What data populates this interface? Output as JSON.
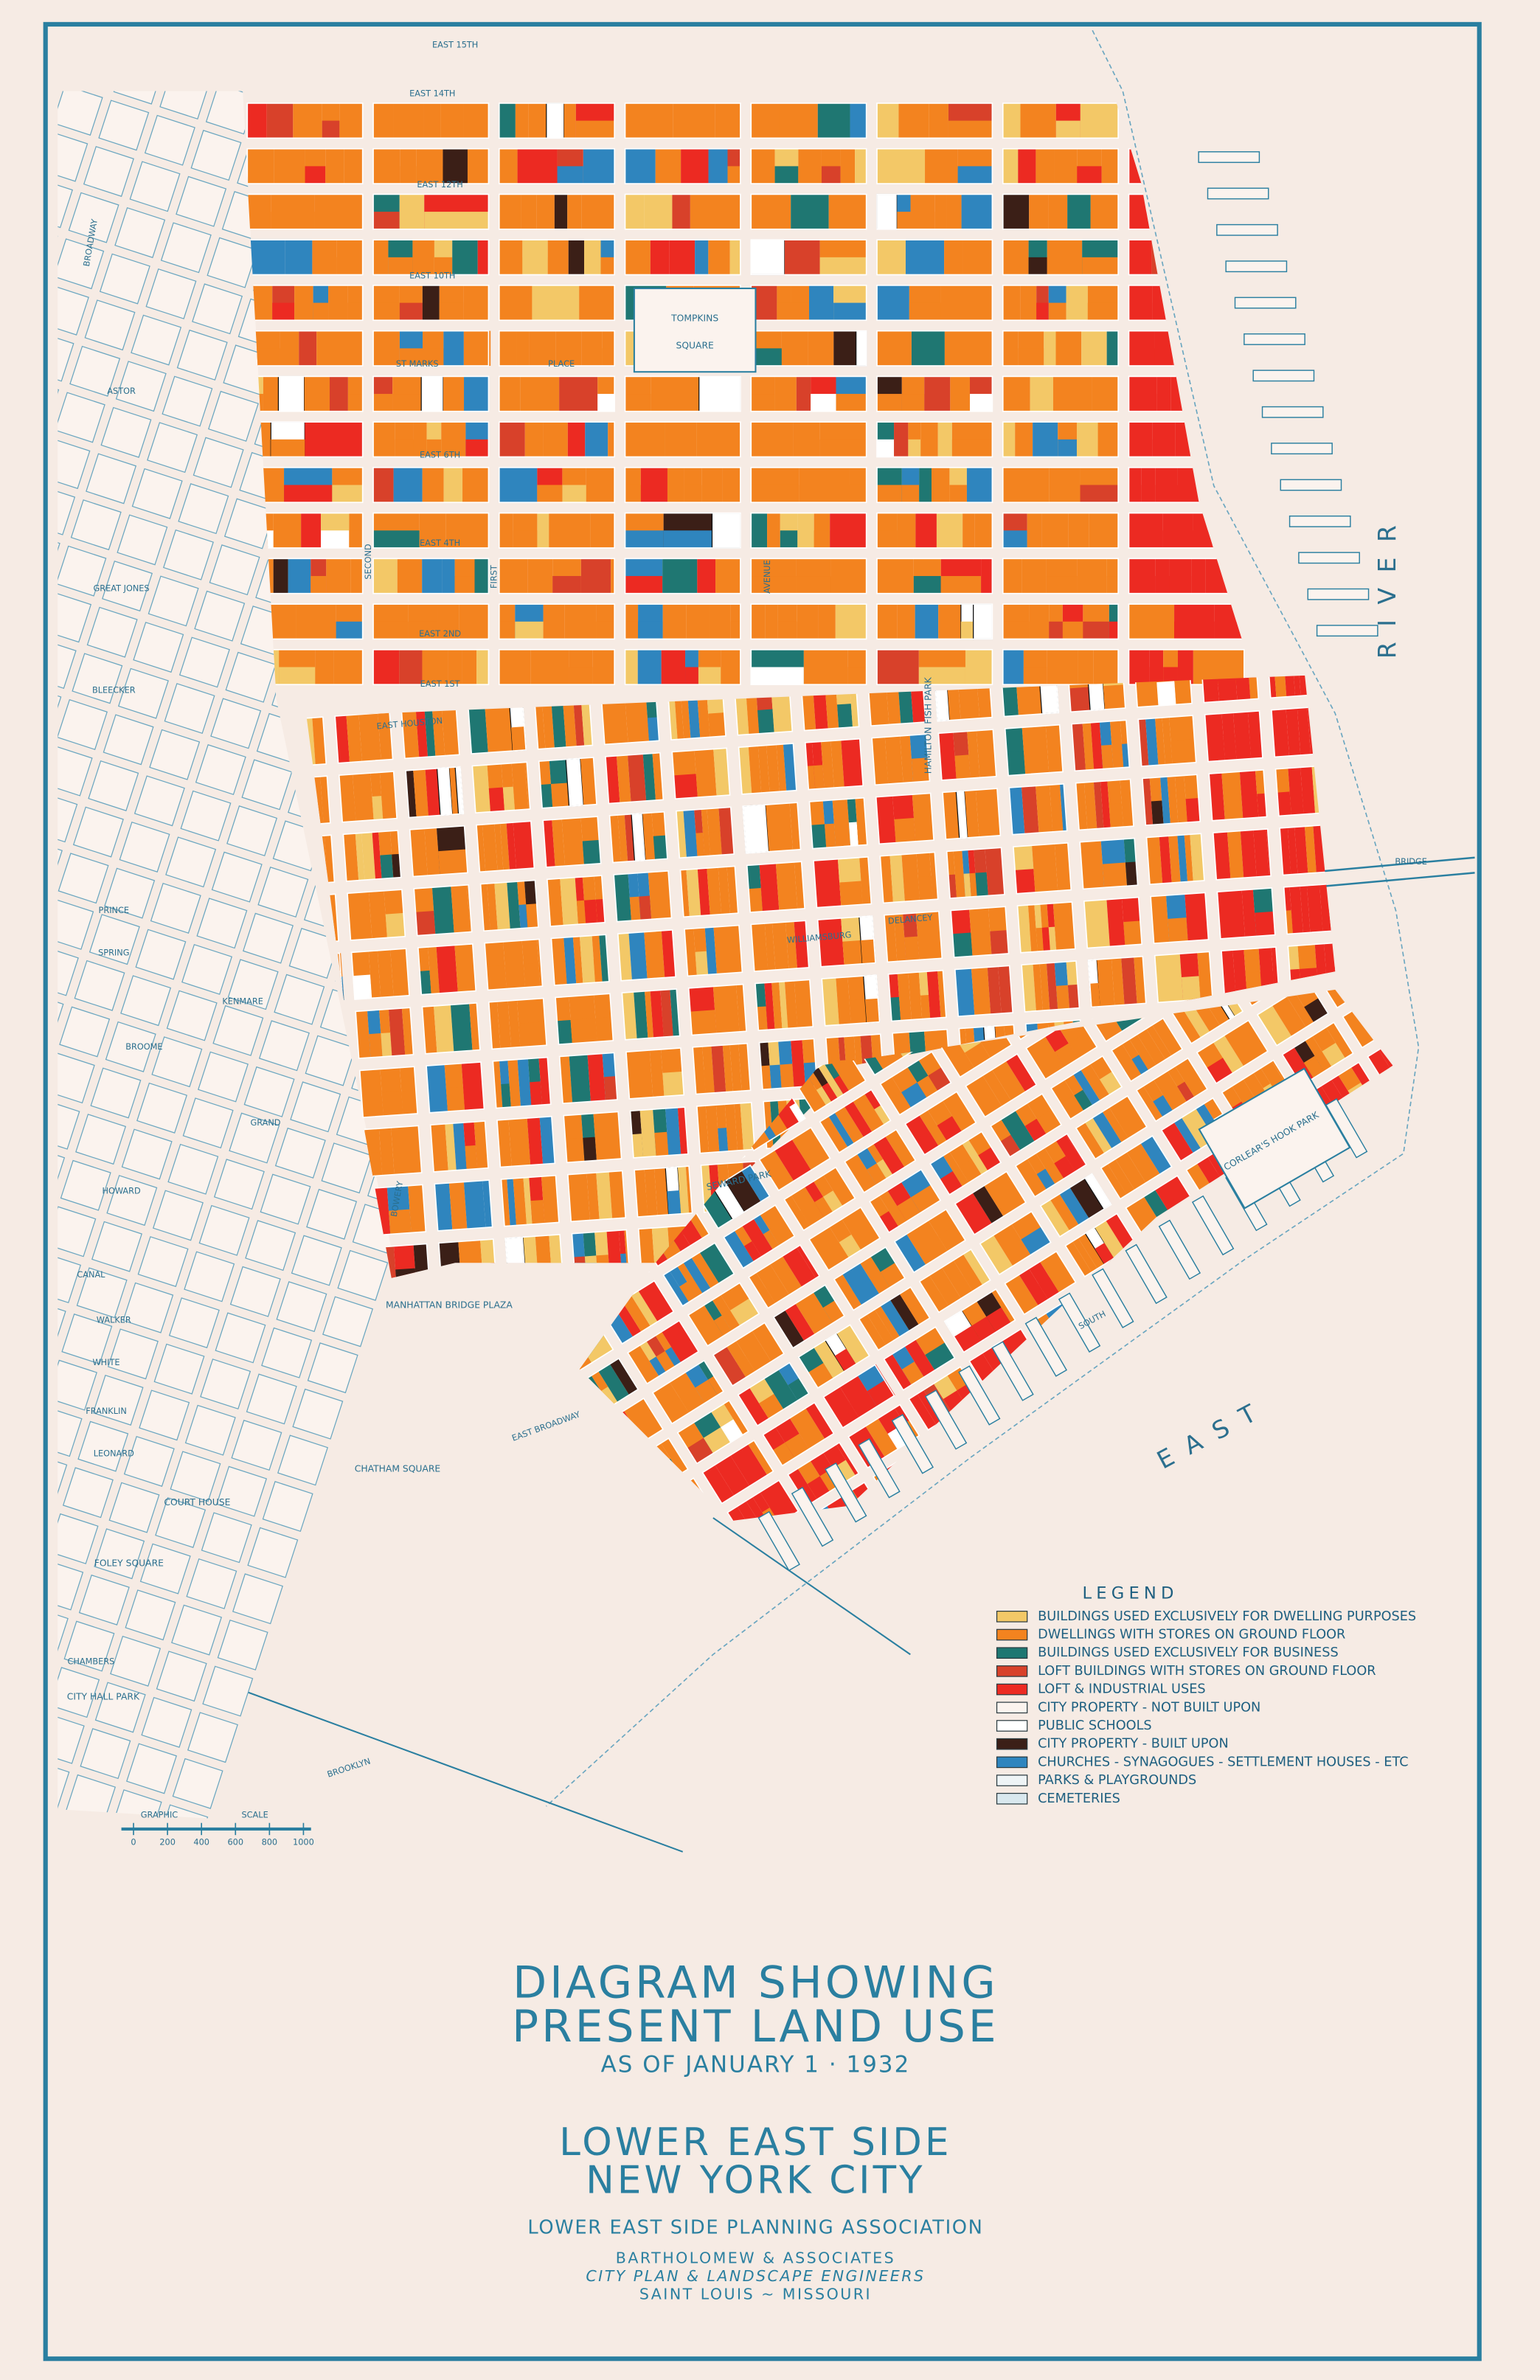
{
  "title": {
    "line1": "DIAGRAM SHOWING",
    "line2": "PRESENT LAND USE",
    "date": "AS OF JANUARY 1 · 1932"
  },
  "place": {
    "line1": "LOWER EAST SIDE",
    "line2": "NEW YORK CITY"
  },
  "association": "LOWER EAST SIDE PLANNING ASSOCIATION",
  "credits": [
    "BARTHOLOMEW & ASSOCIATES",
    "CITY PLAN & LANDSCAPE ENGINEERS",
    "SAINT LOUIS ~ MISSOURI"
  ],
  "legend": {
    "title": "LEGEND",
    "items": [
      {
        "label": "BUILDINGS USED EXCLUSIVELY FOR DWELLING PURPOSES",
        "color": "#f3c867"
      },
      {
        "label": "DWELLINGS WITH STORES ON GROUND FLOOR",
        "color": "#f3831f"
      },
      {
        "label": "BUILDINGS USED EXCLUSIVELY FOR BUSINESS",
        "color": "#1f7772"
      },
      {
        "label": "LOFT BUILDINGS WITH STORES ON GROUND FLOOR",
        "color": "#d8412a"
      },
      {
        "label": "LOFT & INDUSTRIAL USES",
        "color": "#ec2a22"
      },
      {
        "label": "CITY PROPERTY - NOT BUILT UPON",
        "color": "#fbf3ee"
      },
      {
        "label": "PUBLIC SCHOOLS",
        "color": "#ffffff"
      },
      {
        "label": "CITY PROPERTY - BUILT UPON",
        "color": "#3b1f17"
      },
      {
        "label": "CHURCHES - SYNAGOGUES - SETTLEMENT HOUSES - ETC",
        "color": "#2f85be"
      },
      {
        "label": "PARKS & PLAYGROUNDS",
        "color": "#eef4f6"
      },
      {
        "label": "CEMETERIES",
        "color": "#d9e8ee"
      }
    ]
  },
  "streets": [
    "EAST 15TH",
    "EAST 14TH",
    "EAST 12TH",
    "EAST 10TH",
    "ST MARKS",
    "PLACE",
    "EAST 6TH",
    "EAST 4TH",
    "EAST 2ND",
    "EAST 1ST",
    "EAST HOUSTON",
    "WILLIAMSBURG",
    "DELANCEY",
    "BRIDGE",
    "GRAND",
    "CANAL",
    "BROADWAY",
    "BOWERY",
    "FIRST",
    "SECOND",
    "AVENUE",
    "EAST BROADWAY",
    "SOUTH",
    "ASTOR",
    "GREAT JONES",
    "BLEECKER",
    "PRINCE",
    "SPRING",
    "KENMARE",
    "BROOME",
    "HOWARD",
    "WALKER",
    "WHITE",
    "FRANKLIN",
    "LEONARD",
    "CHAMBERS",
    "BROOKLYN"
  ],
  "parks": [
    "TOMPKINS",
    "SQUARE",
    "HAMILTON FISH PARK",
    "SEWARD PARK",
    "CORLEAR'S HOOK PARK",
    "CITY HALL PARK",
    "MANHATTAN BRIDGE PLAZA",
    "CHATHAM SQUARE",
    "FOLEY SQUARE",
    "COURT HOUSE"
  ],
  "water": [
    "EAST",
    "RIVER"
  ],
  "scale": {
    "labels": [
      "GRAPHIC",
      "SCALE"
    ],
    "ticks": [
      0,
      200,
      400,
      600,
      800,
      1000
    ]
  }
}
